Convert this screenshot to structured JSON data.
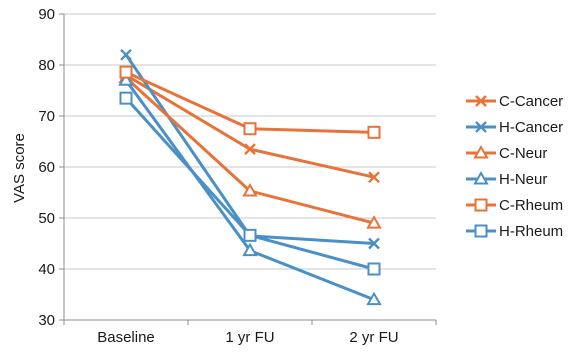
{
  "chart_data": {
    "type": "line",
    "title": "",
    "xlabel": "",
    "ylabel": "VAS score",
    "categories": [
      "Baseline",
      "1 yr FU",
      "2 yr FU"
    ],
    "ylim": [
      30,
      90
    ],
    "yticks": [
      30,
      40,
      50,
      60,
      70,
      80,
      90
    ],
    "grid": true,
    "legend_position": "right",
    "series": [
      {
        "name": "C-Cancer",
        "values": [
          78,
          63.5,
          58
        ],
        "color": "#e8733a",
        "marker": "x"
      },
      {
        "name": "H-Cancer",
        "values": [
          82,
          46.5,
          45
        ],
        "color": "#4a90c8",
        "marker": "x"
      },
      {
        "name": "C-Neur",
        "values": [
          77.5,
          55.3,
          49
        ],
        "color": "#e8733a",
        "marker": "triangle"
      },
      {
        "name": "H-Neur",
        "values": [
          77,
          43.6,
          34
        ],
        "color": "#4a90c8",
        "marker": "triangle"
      },
      {
        "name": "C-Rheum",
        "values": [
          78.6,
          67.5,
          66.8
        ],
        "color": "#e8733a",
        "marker": "square"
      },
      {
        "name": "H-Rheum",
        "values": [
          73.5,
          46.6,
          40
        ],
        "color": "#4a90c8",
        "marker": "square"
      }
    ]
  }
}
